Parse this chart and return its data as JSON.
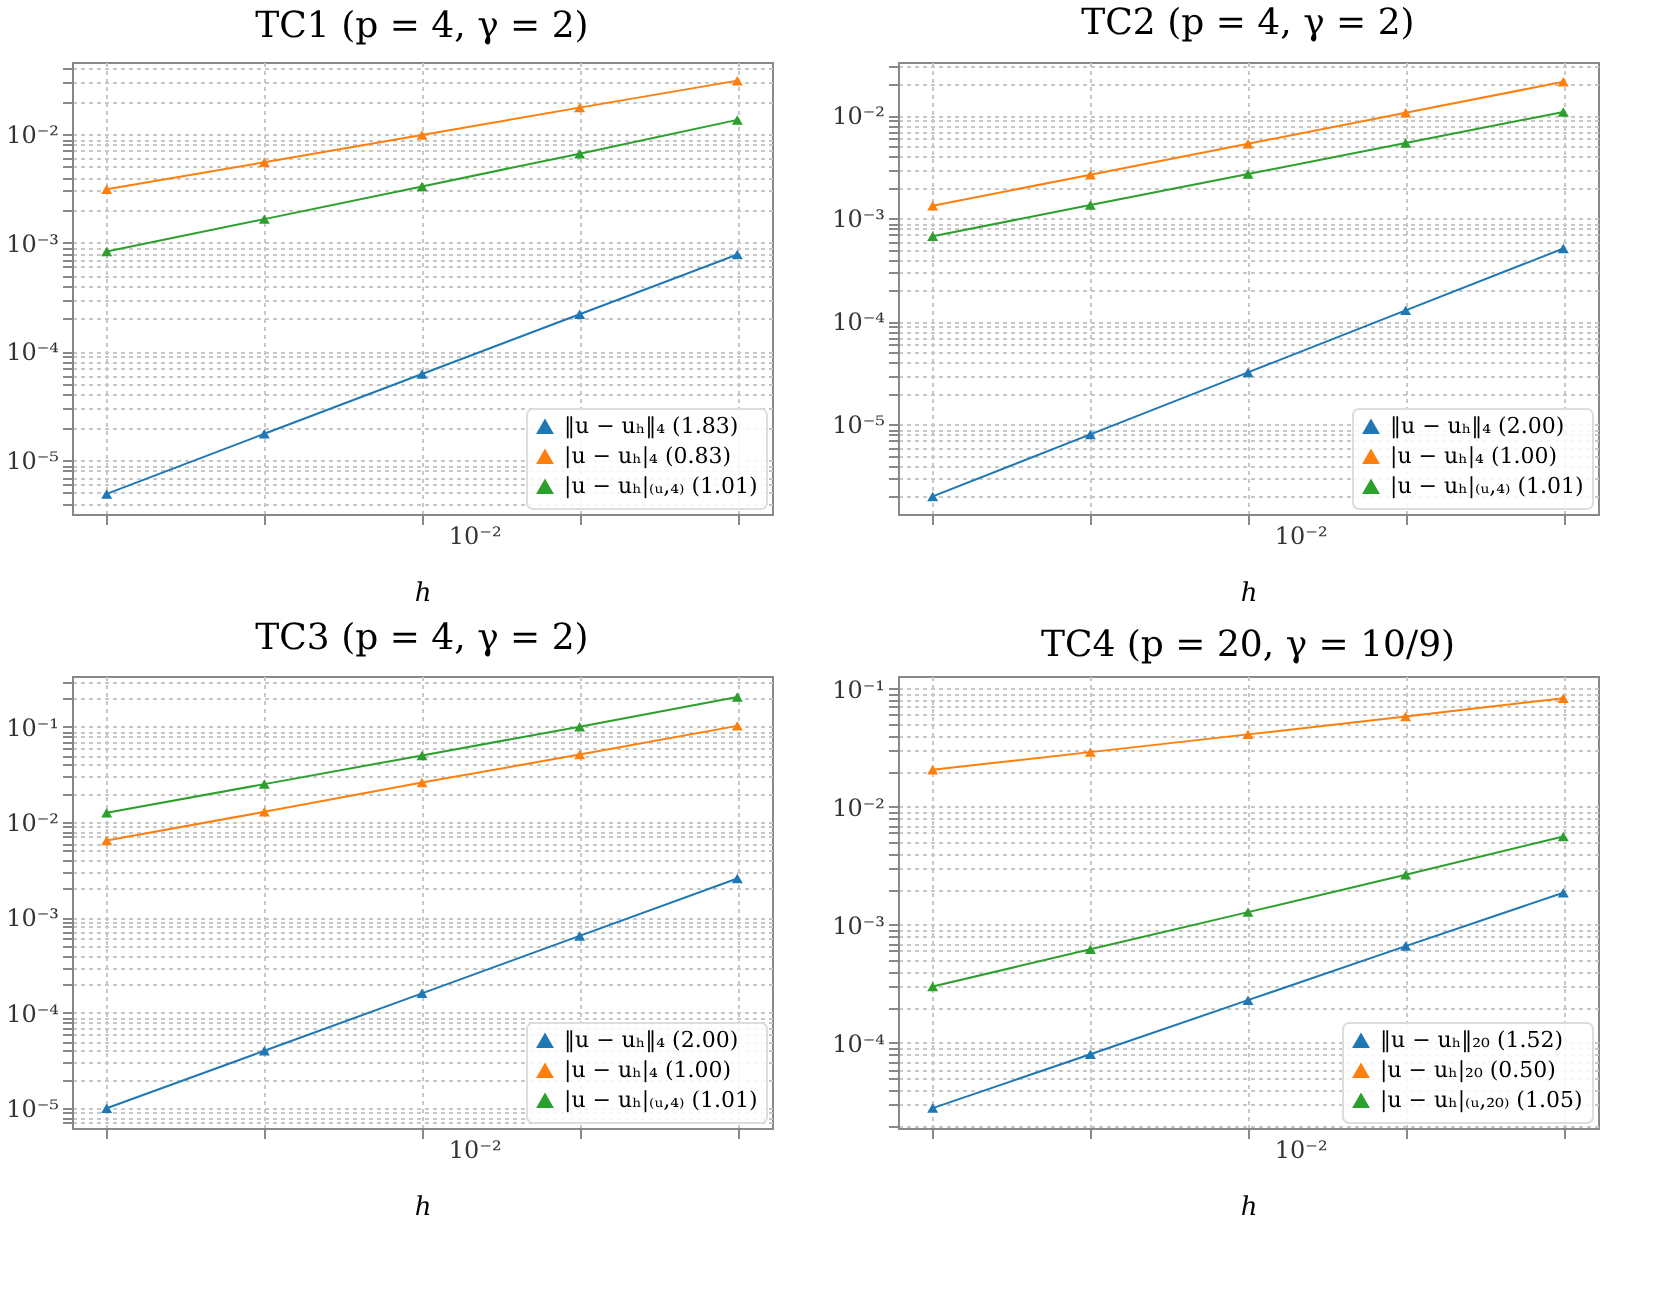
{
  "chart_data": [
    {
      "type": "line",
      "title": "TC1 (p = 4, γ = 2)",
      "xlabel": "h",
      "log": "y",
      "grid": true,
      "legend": "bottom right",
      "marker": "triangle",
      "line_style": "solid",
      "categories": [
        null,
        null,
        null,
        null,
        null
      ],
      "annotations": [
        "10⁻²"
      ],
      "ylim": [
        3.2e-06,
        0.046
      ],
      "yticks": [
        {
          "value": 4e-06,
          "label": null
        },
        {
          "value": 5e-06,
          "label": null
        },
        {
          "value": 6e-06,
          "label": null
        },
        {
          "value": 7e-06,
          "label": null
        },
        {
          "value": 8e-06,
          "label": null
        },
        {
          "value": 9e-06,
          "label": null
        },
        {
          "value": 1e-05,
          "label": "10⁻⁵"
        },
        {
          "value": 2e-05,
          "label": null
        },
        {
          "value": 3e-05,
          "label": null
        },
        {
          "value": 4e-05,
          "label": null
        },
        {
          "value": 5e-05,
          "label": null
        },
        {
          "value": 6e-05,
          "label": null
        },
        {
          "value": 7e-05,
          "label": null
        },
        {
          "value": 8e-05,
          "label": null
        },
        {
          "value": 9e-05,
          "label": null
        },
        {
          "value": 0.0001,
          "label": "10⁻⁴"
        },
        {
          "value": 0.0002,
          "label": null
        },
        {
          "value": 0.0003,
          "label": null
        },
        {
          "value": 0.0004,
          "label": null
        },
        {
          "value": 0.0005,
          "label": null
        },
        {
          "value": 0.0006,
          "label": null
        },
        {
          "value": 0.0007,
          "label": null
        },
        {
          "value": 0.0008,
          "label": null
        },
        {
          "value": 0.0009,
          "label": null
        },
        {
          "value": 0.001,
          "label": "10⁻³"
        },
        {
          "value": 0.002,
          "label": null
        },
        {
          "value": 0.003,
          "label": null
        },
        {
          "value": 0.004,
          "label": null
        },
        {
          "value": 0.005,
          "label": null
        },
        {
          "value": 0.006,
          "label": null
        },
        {
          "value": 0.007,
          "label": null
        },
        {
          "value": 0.008,
          "label": null
        },
        {
          "value": 0.009,
          "label": null
        },
        {
          "value": 0.01,
          "label": "10⁻²"
        },
        {
          "value": 0.02,
          "label": null
        },
        {
          "value": 0.03,
          "label": null
        },
        {
          "value": 0.04,
          "label": null
        }
      ],
      "series": [
        {
          "name": "‖u − uₕ‖₄ (1.83)",
          "color": "#1f77b4",
          "values": [
            4.9e-06,
            1.75e-05,
            6.2e-05,
            0.00022,
            0.00078
          ]
        },
        {
          "name": "|u − uₕ|₄ (0.83)",
          "color": "#ff7f0e",
          "values": [
            0.0031,
            0.0055,
            0.0098,
            0.0175,
            0.031
          ]
        },
        {
          "name": "|u − uₕ|₍ᵤ,₄₎ (1.01)",
          "color": "#2ca02c",
          "values": [
            0.00083,
            0.00165,
            0.0033,
            0.0066,
            0.0135
          ]
        }
      ]
    },
    {
      "type": "line",
      "title": "TC2 (p = 4, γ = 2)",
      "xlabel": "h",
      "log": "y",
      "grid": true,
      "legend": "bottom right",
      "marker": "triangle",
      "line_style": "solid",
      "categories": [
        null,
        null,
        null,
        null,
        null
      ],
      "annotations": [
        "10⁻²"
      ],
      "ylim": [
        1.35e-06,
        0.033
      ],
      "yticks": [
        {
          "value": 2e-06,
          "label": null
        },
        {
          "value": 3e-06,
          "label": null
        },
        {
          "value": 4e-06,
          "label": null
        },
        {
          "value": 5e-06,
          "label": null
        },
        {
          "value": 6e-06,
          "label": null
        },
        {
          "value": 7e-06,
          "label": null
        },
        {
          "value": 8e-06,
          "label": null
        },
        {
          "value": 9e-06,
          "label": null
        },
        {
          "value": 1e-05,
          "label": "10⁻⁵"
        },
        {
          "value": 2e-05,
          "label": null
        },
        {
          "value": 3e-05,
          "label": null
        },
        {
          "value": 4e-05,
          "label": null
        },
        {
          "value": 5e-05,
          "label": null
        },
        {
          "value": 6e-05,
          "label": null
        },
        {
          "value": 7e-05,
          "label": null
        },
        {
          "value": 8e-05,
          "label": null
        },
        {
          "value": 9e-05,
          "label": null
        },
        {
          "value": 0.0001,
          "label": "10⁻⁴"
        },
        {
          "value": 0.0002,
          "label": null
        },
        {
          "value": 0.0003,
          "label": null
        },
        {
          "value": 0.0004,
          "label": null
        },
        {
          "value": 0.0005,
          "label": null
        },
        {
          "value": 0.0006,
          "label": null
        },
        {
          "value": 0.0007,
          "label": null
        },
        {
          "value": 0.0008,
          "label": null
        },
        {
          "value": 0.0009,
          "label": null
        },
        {
          "value": 0.001,
          "label": "10⁻³"
        },
        {
          "value": 0.002,
          "label": null
        },
        {
          "value": 0.003,
          "label": null
        },
        {
          "value": 0.004,
          "label": null
        },
        {
          "value": 0.005,
          "label": null
        },
        {
          "value": 0.006,
          "label": null
        },
        {
          "value": 0.007,
          "label": null
        },
        {
          "value": 0.008,
          "label": null
        },
        {
          "value": 0.009,
          "label": null
        },
        {
          "value": 0.01,
          "label": "10⁻²"
        },
        {
          "value": 0.02,
          "label": null
        },
        {
          "value": 0.03,
          "label": null
        }
      ],
      "series": [
        {
          "name": "‖u − uₕ‖₄ (2.00)",
          "color": "#1f77b4",
          "values": [
            2e-06,
            8e-06,
            3.2e-05,
            0.000128,
            0.00051
          ]
        },
        {
          "name": "|u − uₕ|₄ (1.00)",
          "color": "#ff7f0e",
          "values": [
            0.00133,
            0.00265,
            0.0053,
            0.0106,
            0.0212
          ]
        },
        {
          "name": "|u − uₕ|₍ᵤ,₄₎ (1.01)",
          "color": "#2ca02c",
          "values": [
            0.00067,
            0.00135,
            0.0027,
            0.0054,
            0.0108
          ]
        }
      ]
    },
    {
      "type": "line",
      "title": "TC3 (p = 4, γ = 2)",
      "xlabel": "h",
      "log": "y",
      "grid": true,
      "legend": "bottom right",
      "marker": "triangle",
      "line_style": "solid",
      "categories": [
        null,
        null,
        null,
        null,
        null
      ],
      "annotations": [
        "10⁻²"
      ],
      "ylim": [
        6.2e-06,
        0.34
      ],
      "yticks": [
        {
          "value": 7e-06,
          "label": null
        },
        {
          "value": 8e-06,
          "label": null
        },
        {
          "value": 9e-06,
          "label": null
        },
        {
          "value": 1e-05,
          "label": "10⁻⁵"
        },
        {
          "value": 2e-05,
          "label": null
        },
        {
          "value": 3e-05,
          "label": null
        },
        {
          "value": 4e-05,
          "label": null
        },
        {
          "value": 5e-05,
          "label": null
        },
        {
          "value": 6e-05,
          "label": null
        },
        {
          "value": 7e-05,
          "label": null
        },
        {
          "value": 8e-05,
          "label": null
        },
        {
          "value": 9e-05,
          "label": null
        },
        {
          "value": 0.0001,
          "label": "10⁻⁴"
        },
        {
          "value": 0.0002,
          "label": null
        },
        {
          "value": 0.0003,
          "label": null
        },
        {
          "value": 0.0004,
          "label": null
        },
        {
          "value": 0.0005,
          "label": null
        },
        {
          "value": 0.0006,
          "label": null
        },
        {
          "value": 0.0007,
          "label": null
        },
        {
          "value": 0.0008,
          "label": null
        },
        {
          "value": 0.0009,
          "label": null
        },
        {
          "value": 0.001,
          "label": "10⁻³"
        },
        {
          "value": 0.002,
          "label": null
        },
        {
          "value": 0.003,
          "label": null
        },
        {
          "value": 0.004,
          "label": null
        },
        {
          "value": 0.005,
          "label": null
        },
        {
          "value": 0.006,
          "label": null
        },
        {
          "value": 0.007,
          "label": null
        },
        {
          "value": 0.008,
          "label": null
        },
        {
          "value": 0.009,
          "label": null
        },
        {
          "value": 0.01,
          "label": "10⁻²"
        },
        {
          "value": 0.02,
          "label": null
        },
        {
          "value": 0.03,
          "label": null
        },
        {
          "value": 0.04,
          "label": null
        },
        {
          "value": 0.05,
          "label": null
        },
        {
          "value": 0.06,
          "label": null
        },
        {
          "value": 0.07,
          "label": null
        },
        {
          "value": 0.08,
          "label": null
        },
        {
          "value": 0.09,
          "label": null
        },
        {
          "value": 0.1,
          "label": "10⁻¹"
        },
        {
          "value": 0.2,
          "label": null
        },
        {
          "value": 0.3,
          "label": null
        }
      ],
      "series": [
        {
          "name": "‖u − uₕ‖₄ (2.00)",
          "color": "#1f77b4",
          "values": [
            1e-05,
            4e-05,
            0.00016,
            0.00064,
            0.00256
          ]
        },
        {
          "name": "|u − uₕ|₄ (1.00)",
          "color": "#ff7f0e",
          "values": [
            0.0064,
            0.0128,
            0.026,
            0.051,
            0.102
          ]
        },
        {
          "name": "|u − uₕ|₍ᵤ,₄₎ (1.01)",
          "color": "#2ca02c",
          "values": [
            0.0125,
            0.025,
            0.05,
            0.1,
            0.205
          ]
        }
      ]
    },
    {
      "type": "line",
      "title": "TC4 (p = 20, γ = 10/9)",
      "xlabel": "h",
      "log": "y",
      "grid": true,
      "legend": "bottom right",
      "marker": "triangle",
      "line_style": "solid",
      "categories": [
        null,
        null,
        null,
        null,
        null
      ],
      "annotations": [
        "10⁻²"
      ],
      "ylim": [
        1.9e-05,
        0.128
      ],
      "yticks": [
        {
          "value": 2e-05,
          "label": null
        },
        {
          "value": 3e-05,
          "label": null
        },
        {
          "value": 4e-05,
          "label": null
        },
        {
          "value": 5e-05,
          "label": null
        },
        {
          "value": 6e-05,
          "label": null
        },
        {
          "value": 7e-05,
          "label": null
        },
        {
          "value": 8e-05,
          "label": null
        },
        {
          "value": 9e-05,
          "label": null
        },
        {
          "value": 0.0001,
          "label": "10⁻⁴"
        },
        {
          "value": 0.0002,
          "label": null
        },
        {
          "value": 0.0003,
          "label": null
        },
        {
          "value": 0.0004,
          "label": null
        },
        {
          "value": 0.0005,
          "label": null
        },
        {
          "value": 0.0006,
          "label": null
        },
        {
          "value": 0.0007,
          "label": null
        },
        {
          "value": 0.0008,
          "label": null
        },
        {
          "value": 0.0009,
          "label": null
        },
        {
          "value": 0.001,
          "label": "10⁻³"
        },
        {
          "value": 0.002,
          "label": null
        },
        {
          "value": 0.003,
          "label": null
        },
        {
          "value": 0.004,
          "label": null
        },
        {
          "value": 0.005,
          "label": null
        },
        {
          "value": 0.006,
          "label": null
        },
        {
          "value": 0.007,
          "label": null
        },
        {
          "value": 0.008,
          "label": null
        },
        {
          "value": 0.009,
          "label": null
        },
        {
          "value": 0.01,
          "label": "10⁻²"
        },
        {
          "value": 0.02,
          "label": null
        },
        {
          "value": 0.03,
          "label": null
        },
        {
          "value": 0.04,
          "label": null
        },
        {
          "value": 0.05,
          "label": null
        },
        {
          "value": 0.06,
          "label": null
        },
        {
          "value": 0.07,
          "label": null
        },
        {
          "value": 0.08,
          "label": null
        },
        {
          "value": 0.09,
          "label": null
        },
        {
          "value": 0.1,
          "label": "10⁻¹"
        }
      ],
      "series": [
        {
          "name": "‖u − uₕ‖₂₀ (1.52)",
          "color": "#1f77b4",
          "values": [
            2.8e-05,
            8e-05,
            0.00023,
            0.00066,
            0.00187
          ]
        },
        {
          "name": "|u − uₕ|₂₀ (0.50)",
          "color": "#ff7f0e",
          "values": [
            0.0206,
            0.029,
            0.041,
            0.058,
            0.083
          ]
        },
        {
          "name": "|u − uₕ|₍ᵤ,₂₀₎ (1.05)",
          "color": "#2ca02c",
          "values": [
            0.0003,
            0.00062,
            0.00128,
            0.00265,
            0.0056
          ]
        }
      ]
    }
  ]
}
